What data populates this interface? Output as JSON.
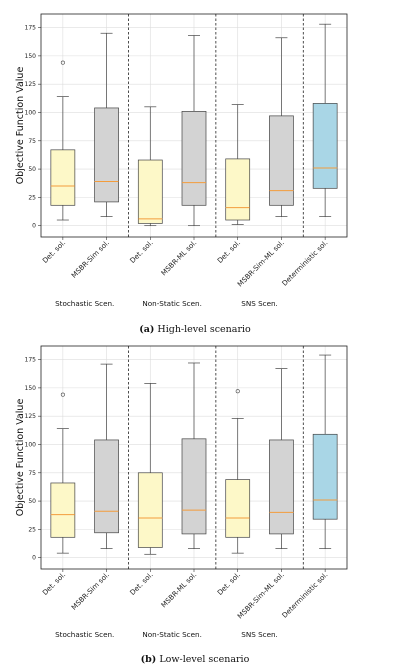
{
  "chart_data": [
    {
      "type": "box",
      "ylabel": "Objective Function Value",
      "ylim": [
        -10,
        187
      ],
      "yticks": [
        0,
        25,
        50,
        75,
        100,
        125,
        150,
        175
      ],
      "grid": true,
      "caption": {
        "tag": "(a)",
        "text": " High-level scenario"
      },
      "groups": [
        {
          "name": "Stochastic Scen.",
          "members": [
            0,
            1
          ]
        },
        {
          "name": "Non-Static Scen.",
          "members": [
            2,
            3
          ]
        },
        {
          "name": "SNS Scen.",
          "members": [
            4,
            5
          ]
        }
      ],
      "boxes": [
        {
          "label": "Det. sol.",
          "min": 5,
          "q1": 18,
          "median": 35,
          "q3": 67,
          "max": 114,
          "outliers": [
            144
          ],
          "fill": "#fdf8c8"
        },
        {
          "label": "MSBR-Sim sol.",
          "min": 8,
          "q1": 21,
          "median": 39,
          "q3": 104,
          "max": 170,
          "outliers": [],
          "fill": "#d3d3d3"
        },
        {
          "label": "Det. sol.",
          "min": 0,
          "q1": 2,
          "median": 6,
          "q3": 58,
          "max": 105,
          "outliers": [],
          "fill": "#fdf8c8"
        },
        {
          "label": "MSBR-ML sol.",
          "min": 0,
          "q1": 18,
          "median": 38,
          "q3": 101,
          "max": 168,
          "outliers": [],
          "fill": "#d3d3d3"
        },
        {
          "label": "Det. sol.",
          "min": 1,
          "q1": 5,
          "median": 16,
          "q3": 59,
          "max": 107,
          "outliers": [],
          "fill": "#fdf8c8"
        },
        {
          "label": "MSBR-Sim-ML sol.",
          "min": 8,
          "q1": 18,
          "median": 31,
          "q3": 97,
          "max": 166,
          "outliers": [],
          "fill": "#d3d3d3"
        },
        {
          "label": "Deterministic sol.",
          "min": 8,
          "q1": 33,
          "median": 51,
          "q3": 108,
          "max": 178,
          "outliers": [],
          "fill": "#a9d6e6"
        }
      ]
    },
    {
      "type": "box",
      "ylabel": "Objective Function Value",
      "ylim": [
        -10,
        187
      ],
      "yticks": [
        0,
        25,
        50,
        75,
        100,
        125,
        150,
        175
      ],
      "grid": true,
      "caption": {
        "tag": "(b)",
        "text": " Low-level scenario"
      },
      "groups": [
        {
          "name": "Stochastic Scen.",
          "members": [
            0,
            1
          ]
        },
        {
          "name": "Non-Static Scen.",
          "members": [
            2,
            3
          ]
        },
        {
          "name": "SNS Scen.",
          "members": [
            4,
            5
          ]
        }
      ],
      "boxes": [
        {
          "label": "Det. sol.",
          "min": 4,
          "q1": 18,
          "median": 38,
          "q3": 66,
          "max": 114,
          "outliers": [
            144
          ],
          "fill": "#fdf8c8"
        },
        {
          "label": "MSBR-Sim sol.",
          "min": 8,
          "q1": 22,
          "median": 41,
          "q3": 104,
          "max": 171,
          "outliers": [],
          "fill": "#d3d3d3"
        },
        {
          "label": "Det. sol.",
          "min": 3,
          "q1": 9,
          "median": 35,
          "q3": 75,
          "max": 154,
          "outliers": [],
          "fill": "#fdf8c8"
        },
        {
          "label": "MSBR-ML sol.",
          "min": 8,
          "q1": 21,
          "median": 42,
          "q3": 105,
          "max": 172,
          "outliers": [],
          "fill": "#d3d3d3"
        },
        {
          "label": "Det. sol.",
          "min": 4,
          "q1": 18,
          "median": 35,
          "q3": 69,
          "max": 123,
          "outliers": [
            147
          ],
          "fill": "#fdf8c8"
        },
        {
          "label": "MSBR-Sim-ML sol.",
          "min": 8,
          "q1": 21,
          "median": 40,
          "q3": 104,
          "max": 167,
          "outliers": [],
          "fill": "#d3d3d3"
        },
        {
          "label": "Deterministic sol.",
          "min": 8,
          "q1": 34,
          "median": 51,
          "q3": 109,
          "max": 179,
          "outliers": [],
          "fill": "#a9d6e6"
        }
      ]
    }
  ]
}
